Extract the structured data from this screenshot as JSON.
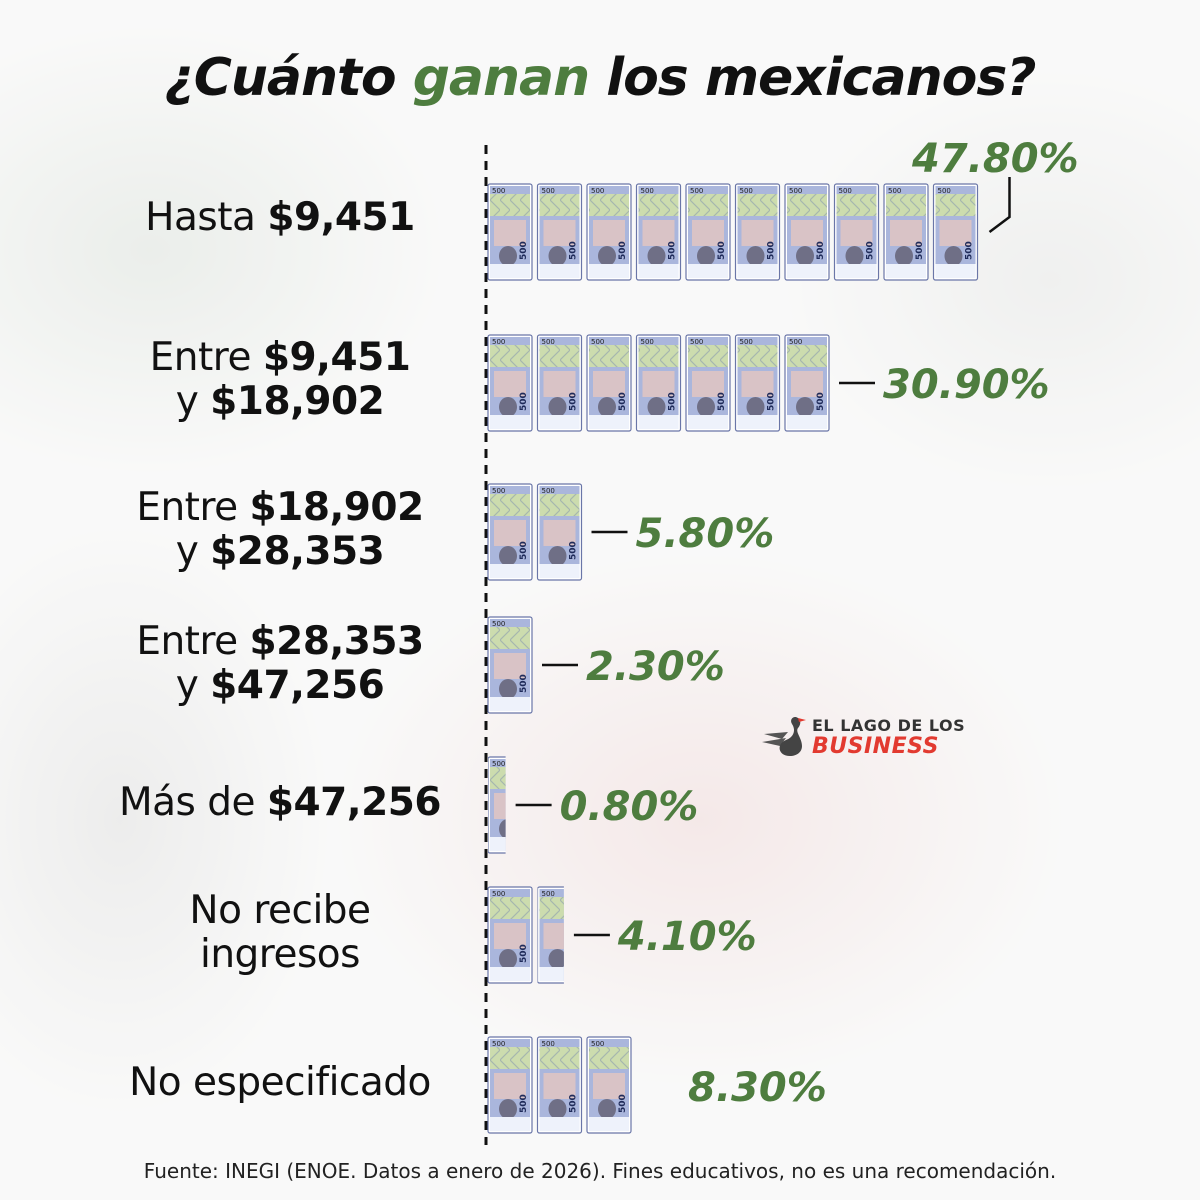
{
  "title": {
    "part1": "¿Cuánto ",
    "accent": "ganan",
    "part2": " los mexicanos?"
  },
  "rows": [
    {
      "pre1": "Hasta ",
      "bold1": "$9,451",
      "pre2": "",
      "bold2": "",
      "value_label": "47.80%",
      "value": 47.8,
      "notes": 10
    },
    {
      "pre1": "Entre ",
      "bold1": "$9,451",
      "pre2": "y ",
      "bold2": "$18,902",
      "value_label": "30.90%",
      "value": 30.9,
      "notes": 7
    },
    {
      "pre1": "Entre ",
      "bold1": "$18,902",
      "pre2": "y ",
      "bold2": "$28,353",
      "value_label": "5.80%",
      "value": 5.8,
      "notes": 2
    },
    {
      "pre1": "Entre ",
      "bold1": "$28,353",
      "pre2": "y ",
      "bold2": "$47,256",
      "value_label": "2.30%",
      "value": 2.3,
      "notes": 1
    },
    {
      "pre1": "Más de ",
      "bold1": "$47,256",
      "pre2": "",
      "bold2": "",
      "value_label": "0.80%",
      "value": 0.8,
      "notes": 0.4
    },
    {
      "pre1": "No recibe",
      "bold1": "",
      "pre2": "ingresos",
      "bold2": "",
      "value_label": "4.10%",
      "value": 4.1,
      "notes": 1.6
    },
    {
      "pre1": "No especificado",
      "bold1": "",
      "pre2": "",
      "bold2": "",
      "value_label": "8.30%",
      "value": 8.3,
      "notes": 3
    }
  ],
  "chart_data": {
    "type": "bar",
    "orientation": "horizontal",
    "title": "¿Cuánto ganan los mexicanos?",
    "categories": [
      "Hasta $9,451",
      "Entre $9,451 y $18,902",
      "Entre $18,902 y $28,353",
      "Entre $28,353 y $47,256",
      "Más de $47,256",
      "No recibe ingresos",
      "No especificado"
    ],
    "values": [
      47.8,
      30.9,
      5.8,
      2.3,
      0.8,
      4.1,
      8.3
    ],
    "data_labels": [
      "47.80%",
      "30.90%",
      "5.80%",
      "2.30%",
      "0.80%",
      "4.10%",
      "8.30%"
    ],
    "grid": false,
    "legend": "none"
  },
  "banknote": {
    "denomination": "500"
  },
  "logo": {
    "line1": "EL LAGO DE LOS",
    "line2": "BUSINESS"
  },
  "source": "Fuente: INEGI (ENOE. Datos a enero de 2026). Fines educativos, no es una recomendación.",
  "colors": {
    "accent": "#4e7d3f",
    "text": "#111111",
    "logo_red": "#e23a30",
    "note_blue": "#aab6dc",
    "note_green": "#cfe0a8"
  }
}
